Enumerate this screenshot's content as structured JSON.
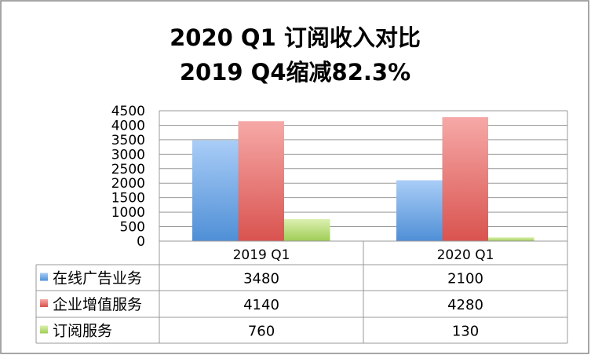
{
  "chart_data": {
    "type": "bar",
    "title": [
      "2020 Q1  订阅收入对比",
      "2019 Q4缩减82.3%"
    ],
    "categories": [
      "2019 Q1",
      "2020 Q1"
    ],
    "series": [
      {
        "name": "在线广告业务",
        "values": [
          3480,
          2100
        ],
        "color": "#4f8fd6",
        "color_light": "#a9cdf7"
      },
      {
        "name": "企业增值服务",
        "values": [
          4140,
          4280
        ],
        "color": "#d9534f",
        "color_light": "#f6a9a7"
      },
      {
        "name": "订阅服务",
        "values": [
          760,
          130
        ],
        "color": "#9fcd55",
        "color_light": "#dcf0b1"
      }
    ],
    "ylim": [
      0,
      4500
    ],
    "yticks": [
      0,
      500,
      1000,
      1500,
      2000,
      2500,
      3000,
      3500,
      4000,
      4500
    ],
    "grid": true,
    "legend": "data-table"
  }
}
